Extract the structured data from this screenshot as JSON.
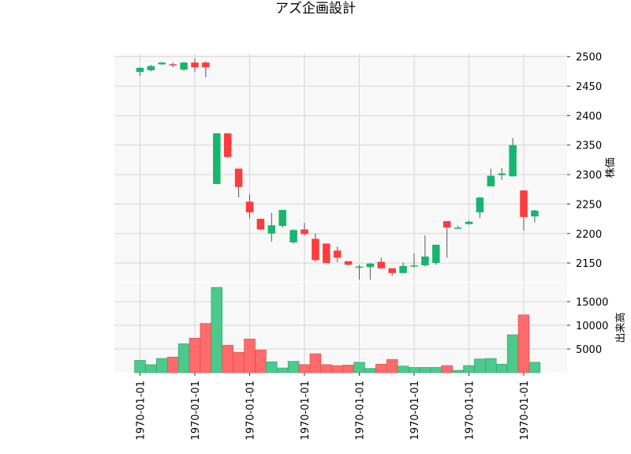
{
  "chart_data": {
    "type": "candlestick",
    "title": "アズ企画設計",
    "price_label": "株価",
    "volume_label": "出来高",
    "price_ylim": [
      2118,
      2505
    ],
    "price_ticks": [
      2150,
      2200,
      2250,
      2300,
      2350,
      2400,
      2450,
      2500
    ],
    "volume_ylim": [
      0,
      19000
    ],
    "volume_ticks": [
      5000,
      10000,
      15000
    ],
    "x_tick_labels": [
      "1970-01-01",
      "1970-01-01",
      "1970-01-01",
      "1970-01-01",
      "1970-01-01",
      "1970-01-01",
      "1970-01-01",
      "1970-01-01"
    ],
    "x_tick_positions": [
      0,
      5,
      10,
      15,
      20,
      25,
      30,
      35
    ],
    "up_color": "#16b66e",
    "down_color": "#ff3b3b",
    "up_volume_color": "#4cc98c",
    "down_volume_color": "#ff6b6b",
    "candles": [
      {
        "open": 2474,
        "high": 2482,
        "low": 2467,
        "close": 2481,
        "volume": 2600
      },
      {
        "open": 2477,
        "high": 2486,
        "low": 2475,
        "close": 2484,
        "volume": 1700
      },
      {
        "open": 2487,
        "high": 2491,
        "low": 2486,
        "close": 2490,
        "volume": 3000
      },
      {
        "open": 2487,
        "high": 2490,
        "low": 2482,
        "close": 2485,
        "volume": 3300
      },
      {
        "open": 2478,
        "high": 2491,
        "low": 2476,
        "close": 2490,
        "volume": 6100
      },
      {
        "open": 2490,
        "high": 2497,
        "low": 2474,
        "close": 2482,
        "volume": 7300
      },
      {
        "open": 2490,
        "high": 2492,
        "low": 2465,
        "close": 2482,
        "volume": 10400
      },
      {
        "open": 2284,
        "high": 2370,
        "low": 2284,
        "close": 2370,
        "volume": 18000
      },
      {
        "open": 2370,
        "high": 2370,
        "low": 2328,
        "close": 2330,
        "volume": 5800
      },
      {
        "open": 2310,
        "high": 2310,
        "low": 2261,
        "close": 2279,
        "volume": 4300
      },
      {
        "open": 2254,
        "high": 2266,
        "low": 2226,
        "close": 2236,
        "volume": 7100
      },
      {
        "open": 2225,
        "high": 2225,
        "low": 2206,
        "close": 2207,
        "volume": 4800
      },
      {
        "open": 2200,
        "high": 2235,
        "low": 2186,
        "close": 2214,
        "volume": 2300
      },
      {
        "open": 2213,
        "high": 2240,
        "low": 2210,
        "close": 2240,
        "volume": 1000
      },
      {
        "open": 2185,
        "high": 2207,
        "low": 2183,
        "close": 2206,
        "volume": 2400
      },
      {
        "open": 2207,
        "high": 2218,
        "low": 2197,
        "close": 2199,
        "volume": 1700
      },
      {
        "open": 2191,
        "high": 2200,
        "low": 2152,
        "close": 2155,
        "volume": 4000
      },
      {
        "open": 2183,
        "high": 2183,
        "low": 2150,
        "close": 2150,
        "volume": 1700
      },
      {
        "open": 2171,
        "high": 2178,
        "low": 2152,
        "close": 2159,
        "volume": 1500
      },
      {
        "open": 2153,
        "high": 2153,
        "low": 2146,
        "close": 2147,
        "volume": 1600
      },
      {
        "open": 2142,
        "high": 2147,
        "low": 2122,
        "close": 2144,
        "volume": 2200
      },
      {
        "open": 2143,
        "high": 2150,
        "low": 2122,
        "close": 2149,
        "volume": 900
      },
      {
        "open": 2152,
        "high": 2159,
        "low": 2140,
        "close": 2141,
        "volume": 1800
      },
      {
        "open": 2141,
        "high": 2141,
        "low": 2128,
        "close": 2133,
        "volume": 2800
      },
      {
        "open": 2133,
        "high": 2151,
        "low": 2133,
        "close": 2145,
        "volume": 1400
      },
      {
        "open": 2144,
        "high": 2166,
        "low": 2142,
        "close": 2146,
        "volume": 1100
      },
      {
        "open": 2146,
        "high": 2197,
        "low": 2144,
        "close": 2161,
        "volume": 1100
      },
      {
        "open": 2150,
        "high": 2181,
        "low": 2147,
        "close": 2181,
        "volume": 1100
      },
      {
        "open": 2221,
        "high": 2221,
        "low": 2159,
        "close": 2210,
        "volume": 1500
      },
      {
        "open": 2210,
        "high": 2213,
        "low": 2209,
        "close": 2210,
        "volume": 500
      },
      {
        "open": 2216,
        "high": 2222,
        "low": 2215,
        "close": 2220,
        "volume": 1500
      },
      {
        "open": 2236,
        "high": 2262,
        "low": 2226,
        "close": 2261,
        "volume": 2900
      },
      {
        "open": 2280,
        "high": 2310,
        "low": 2280,
        "close": 2298,
        "volume": 3000
      },
      {
        "open": 2299,
        "high": 2311,
        "low": 2291,
        "close": 2302,
        "volume": 1800
      },
      {
        "open": 2297,
        "high": 2362,
        "low": 2297,
        "close": 2350,
        "volume": 8000
      },
      {
        "open": 2273,
        "high": 2273,
        "low": 2205,
        "close": 2228,
        "volume": 12200
      },
      {
        "open": 2229,
        "high": 2240,
        "low": 2219,
        "close": 2239,
        "volume": 2200
      }
    ]
  }
}
